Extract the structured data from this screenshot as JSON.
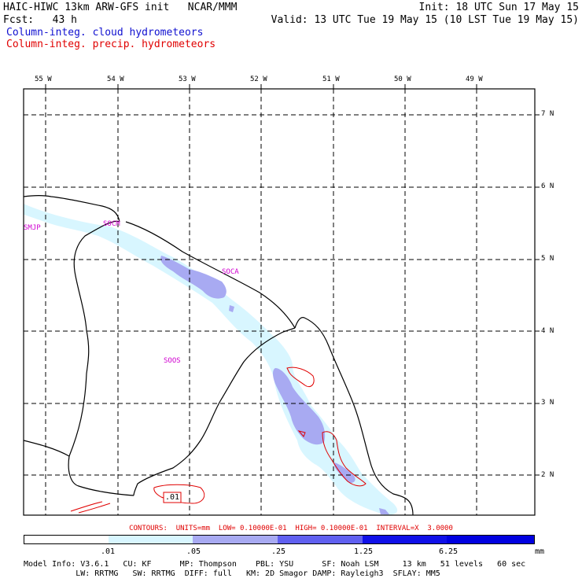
{
  "header": {
    "model": "HAIC-HIWC 13km ARW-GFS init   NCAR/MMM",
    "init": "Init: 18 UTC Sun 17 May 15",
    "fcst": "Fcst:   43 h",
    "valid": "Valid: 13 UTC Tue 19 May 15 (10 LST Tue 19 May 15)",
    "field_cloud": "Column-integ. cloud hydrometeors",
    "field_precip": "Column-integ. precip. hydrometeors"
  },
  "map": {
    "lon_labels": [
      "55 W",
      "54 W",
      "53 W",
      "52 W",
      "51 W",
      "50 W",
      "49 W"
    ],
    "lat_labels": [
      "7 N",
      "6 N",
      "5 N",
      "4 N",
      "3 N",
      "2 N"
    ],
    "stations": [
      "SMJP",
      "SOCM",
      "SOCA",
      "SOOS"
    ],
    "contour_label": ".01",
    "colors": {
      "coast": "#000000",
      "grid": "#000000",
      "precip_contour": "#e00000",
      "shade_1": "#d8f6ff",
      "shade_2": "#a8aaf2",
      "shade_3": "#6060f0",
      "shade_4": "#1010e8"
    }
  },
  "contour_info": "CONTOURS:  UNITS=mm  LOW= 0.10000E-01  HIGH= 0.10000E-01  INTERVAL=X  3.0000",
  "legend": {
    "ticks": [
      ".01",
      ".05",
      ".25",
      "1.25",
      "6.25"
    ],
    "unit": "mm",
    "colors": [
      "#ffffff",
      "#d8f6ff",
      "#a8aaf2",
      "#6060f0",
      "#1010e8",
      "#0000e0"
    ]
  },
  "footer": {
    "line1": "Model Info: V3.6.1   CU: KF      MP: Thompson    PBL: YSU      SF: Noah LSM     13 km   51 levels   60 sec",
    "line2": "           LW: RRTMG   SW: RRTMG  DIFF: full   KM: 2D Smagor DAMP: Rayleigh3  SFLAY: MM5"
  }
}
